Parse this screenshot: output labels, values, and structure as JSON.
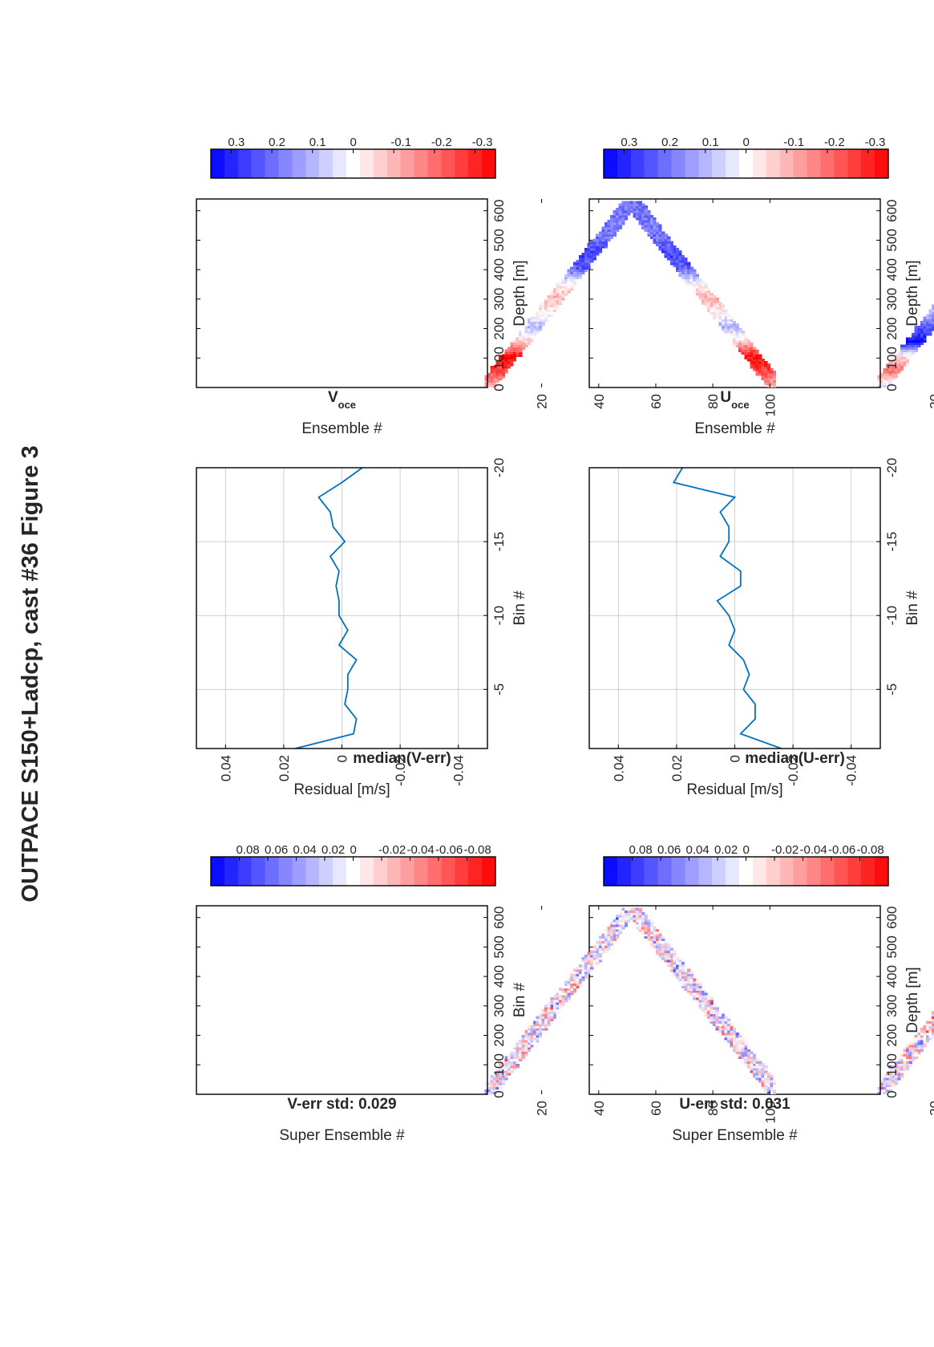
{
  "figure": {
    "title": "OUTPACE S150+Ladcp, cast #36  Figure 3"
  },
  "colors": {
    "series_line": "#0072bd",
    "frame": "#000000",
    "grid": "#cfcfcf",
    "cmap_red": "#ff0000",
    "cmap_white": "#ffffff",
    "cmap_blue": "#0000ff"
  },
  "chart_data": [
    {
      "id": "u_err",
      "type": "heatmap",
      "title": "U-err std: 0.031",
      "xlabel": "Super Ensemble #",
      "ylabel": "Depth [m]",
      "xlim": [
        1,
        103
      ],
      "ylim": [
        0,
        640
      ],
      "xticks": [
        20,
        40,
        60,
        80,
        100
      ],
      "yticks": [
        0,
        100,
        200,
        300,
        400,
        500,
        600
      ],
      "colorbar_ticks": [
        0.08,
        0.06,
        0.04,
        0.02,
        0,
        -0.02,
        -0.04,
        -0.06,
        -0.08
      ],
      "clim": [
        -0.1,
        0.1
      ],
      "pattern": {
        "turn_ensemble": 52,
        "max_depth": 630,
        "band_width_m": 72,
        "amplitude": 0.06,
        "seed": 11
      }
    },
    {
      "id": "median_u",
      "type": "line",
      "title": "median(U-err)",
      "xlabel": "Residual [m/s]",
      "ylabel": "Bin #",
      "xlim": [
        -0.05,
        0.05
      ],
      "ylim": [
        -20,
        -1
      ],
      "xticks": [
        -0.04,
        -0.02,
        0,
        0.02,
        0.04
      ],
      "yticks": [
        -5,
        -10,
        -15,
        -20
      ],
      "grid": true,
      "series": [
        {
          "x": [
            -0.016,
            -0.002,
            -0.007,
            -0.007,
            -0.003,
            -0.005,
            -0.003,
            0.002,
            0.0,
            0.002,
            0.006,
            -0.002,
            -0.002,
            0.005,
            0.002,
            0.002,
            0.005,
            0.0,
            0.021,
            0.018
          ],
          "y": [
            -1,
            -2,
            -3,
            -4,
            -5,
            -6,
            -7,
            -8,
            -9,
            -10,
            -11,
            -12,
            -13,
            -14,
            -15,
            -16,
            -17,
            -18,
            -19,
            -20
          ]
        }
      ]
    },
    {
      "id": "u_oce",
      "type": "heatmap",
      "title": "U",
      "title_sub": "oce",
      "xlabel": "Ensemble #",
      "ylabel": "Depth [m]",
      "xlim": [
        1,
        103
      ],
      "ylim": [
        0,
        640
      ],
      "xticks": [
        20,
        40,
        60,
        80,
        100
      ],
      "yticks": [
        0,
        100,
        200,
        300,
        400,
        500,
        600
      ],
      "colorbar_ticks": [
        0.3,
        0.2,
        0.1,
        0,
        -0.1,
        -0.2,
        -0.3
      ],
      "clim": [
        -0.35,
        0.35
      ],
      "pattern": {
        "turn_ensemble": 52,
        "max_depth": 630,
        "band_width_m": 72,
        "profile_depths": [
          0,
          50,
          100,
          150,
          200,
          250,
          300,
          350,
          400,
          450,
          500,
          550,
          630
        ],
        "profile_values": [
          -0.05,
          0.2,
          0.05,
          -0.34,
          -0.22,
          -0.1,
          -0.05,
          -0.08,
          -0.16,
          -0.1,
          -0.12,
          -0.08,
          -0.08
        ],
        "noise": 0.04,
        "seed": 23
      }
    },
    {
      "id": "v_err",
      "type": "heatmap",
      "title": "V-err std: 0.029",
      "xlabel": "Super Ensemble #",
      "ylabel": "Bin #",
      "xlim": [
        1,
        103
      ],
      "ylim": [
        0,
        640
      ],
      "xticks": [
        20,
        40,
        60,
        80,
        100
      ],
      "yticks": [
        0,
        100,
        200,
        300,
        400,
        500,
        600
      ],
      "colorbar_ticks": [
        0.08,
        0.06,
        0.04,
        0.02,
        0,
        -0.02,
        -0.04,
        -0.06,
        -0.08
      ],
      "clim": [
        -0.1,
        0.1
      ],
      "pattern": {
        "turn_ensemble": 52,
        "max_depth": 630,
        "band_width_m": 72,
        "amplitude": 0.06,
        "seed": 37
      }
    },
    {
      "id": "median_v",
      "type": "line",
      "title": "median(V-err)",
      "xlabel": "Residual [m/s]",
      "ylabel": "Bin #",
      "xlim": [
        -0.05,
        0.05
      ],
      "ylim": [
        -20,
        -1
      ],
      "xticks": [
        -0.04,
        -0.02,
        0,
        0.02,
        0.04
      ],
      "yticks": [
        -5,
        -10,
        -15,
        -20
      ],
      "grid": true,
      "series": [
        {
          "x": [
            0.016,
            -0.004,
            -0.005,
            -0.001,
            -0.002,
            -0.002,
            -0.005,
            0.001,
            -0.002,
            0.001,
            0.001,
            0.002,
            0.001,
            0.004,
            -0.001,
            0.003,
            0.004,
            0.008,
            0.0,
            -0.007
          ],
          "y": [
            -1,
            -2,
            -3,
            -4,
            -5,
            -6,
            -7,
            -8,
            -9,
            -10,
            -11,
            -12,
            -13,
            -14,
            -15,
            -16,
            -17,
            -18,
            -19,
            -20
          ]
        }
      ]
    },
    {
      "id": "v_oce",
      "type": "heatmap",
      "title": "V",
      "title_sub": "oce",
      "xlabel": "Ensemble #",
      "ylabel": "Depth [m]",
      "xlim": [
        1,
        103
      ],
      "ylim": [
        0,
        640
      ],
      "xticks": [
        20,
        40,
        60,
        80,
        100
      ],
      "yticks": [
        0,
        100,
        200,
        300,
        400,
        500,
        600
      ],
      "colorbar_ticks": [
        0.3,
        0.2,
        0.1,
        0,
        -0.1,
        -0.2,
        -0.3
      ],
      "clim": [
        -0.35,
        0.35
      ],
      "pattern": {
        "turn_ensemble": 52,
        "max_depth": 630,
        "band_width_m": 72,
        "profile_depths": [
          0,
          50,
          100,
          150,
          200,
          250,
          300,
          350,
          400,
          450,
          500,
          550,
          630
        ],
        "profile_values": [
          0.1,
          0.25,
          0.34,
          0.08,
          -0.1,
          0.02,
          0.1,
          0.0,
          -0.22,
          -0.26,
          -0.2,
          -0.18,
          -0.2
        ],
        "noise": 0.05,
        "seed": 41
      }
    }
  ]
}
